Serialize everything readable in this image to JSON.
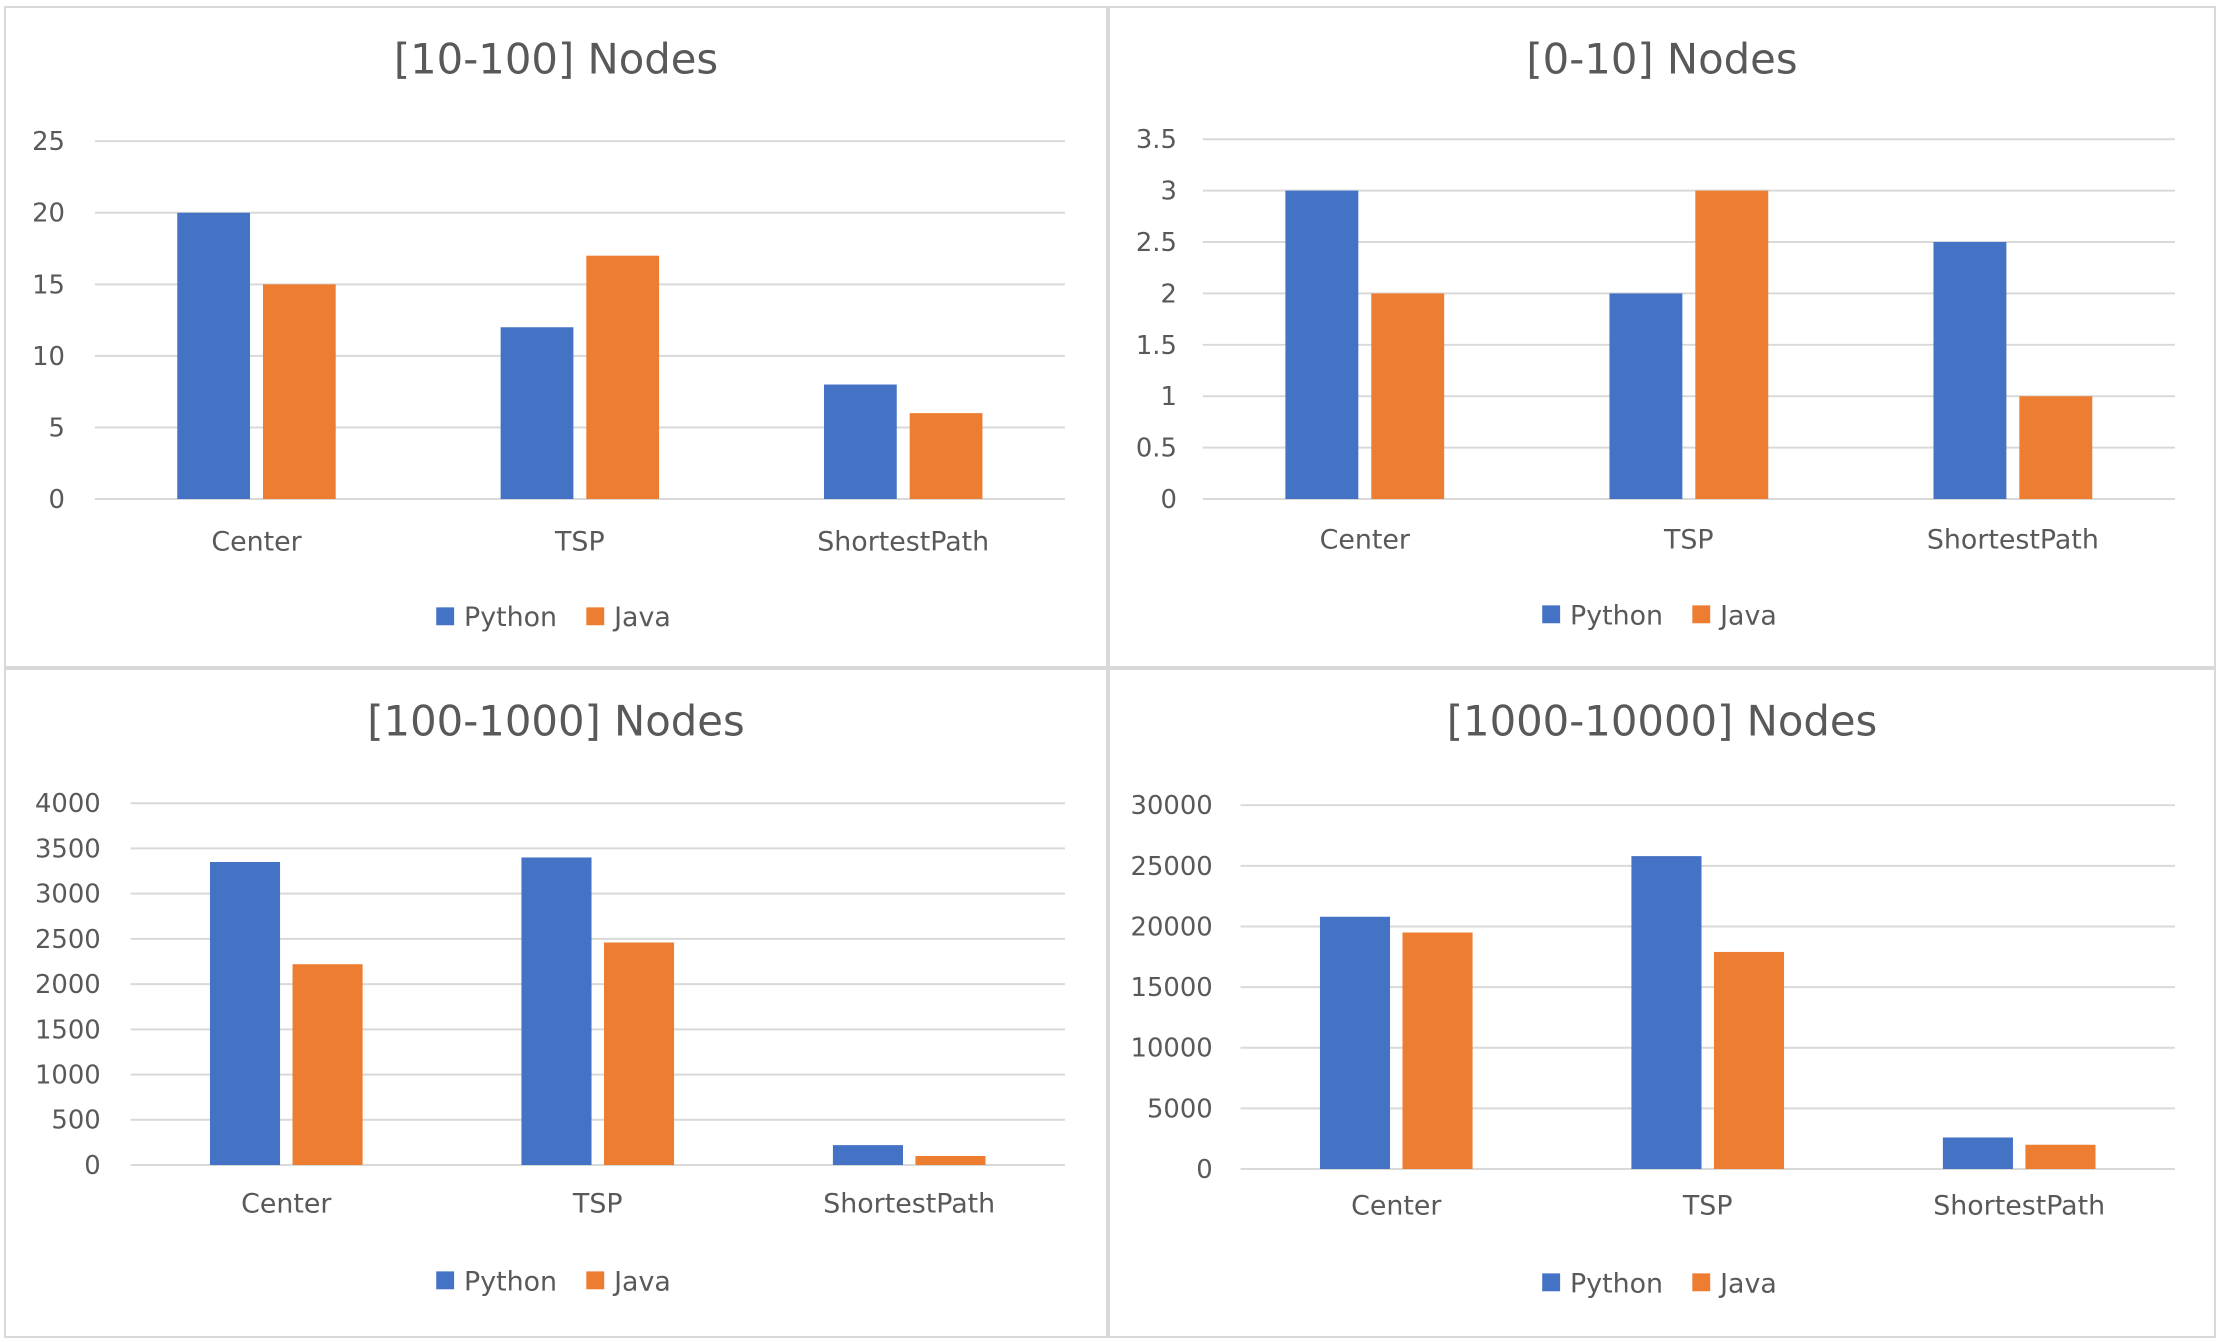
{
  "chart_data": [
    {
      "type": "bar",
      "title": "[10-100] Nodes",
      "categories": [
        "Center",
        "TSP",
        "ShortestPath"
      ],
      "series": [
        {
          "name": "Python",
          "color": "#4472c4",
          "values": [
            20,
            12,
            8
          ]
        },
        {
          "name": "Java",
          "color": "#ed7d31",
          "values": [
            15,
            17,
            6
          ]
        }
      ],
      "ylim": [
        0,
        25
      ],
      "yticks": [
        0,
        5,
        10,
        15,
        20,
        25
      ],
      "grid": true,
      "legend": "bottom"
    },
    {
      "type": "bar",
      "title": "[0-10] Nodes",
      "categories": [
        "Center",
        "TSP",
        "ShortestPath"
      ],
      "series": [
        {
          "name": "Python",
          "color": "#4472c4",
          "values": [
            3,
            2,
            2.5
          ]
        },
        {
          "name": "Java",
          "color": "#ed7d31",
          "values": [
            2,
            3,
            1
          ]
        }
      ],
      "ylim": [
        0,
        3.5
      ],
      "yticks": [
        0,
        0.5,
        1,
        1.5,
        2,
        2.5,
        3,
        3.5
      ],
      "grid": true,
      "legend": "bottom"
    },
    {
      "type": "bar",
      "title": "[100-1000] Nodes",
      "categories": [
        "Center",
        "TSP",
        "ShortestPath"
      ],
      "series": [
        {
          "name": "Python",
          "color": "#4472c4",
          "values": [
            3350,
            3400,
            220
          ]
        },
        {
          "name": "Java",
          "color": "#ed7d31",
          "values": [
            2220,
            2460,
            100
          ]
        }
      ],
      "ylim": [
        0,
        4000
      ],
      "yticks": [
        0,
        500,
        1000,
        1500,
        2000,
        2500,
        3000,
        3500,
        4000
      ],
      "grid": true,
      "legend": "bottom"
    },
    {
      "type": "bar",
      "title": "[1000-10000] Nodes",
      "categories": [
        "Center",
        "TSP",
        "ShortestPath"
      ],
      "series": [
        {
          "name": "Python",
          "color": "#4472c4",
          "values": [
            20800,
            25800,
            2600
          ]
        },
        {
          "name": "Java",
          "color": "#ed7d31",
          "values": [
            19500,
            17900,
            2000
          ]
        }
      ],
      "ylim": [
        0,
        30000
      ],
      "yticks": [
        0,
        5000,
        10000,
        15000,
        20000,
        25000,
        30000
      ],
      "grid": true,
      "legend": "bottom"
    }
  ]
}
